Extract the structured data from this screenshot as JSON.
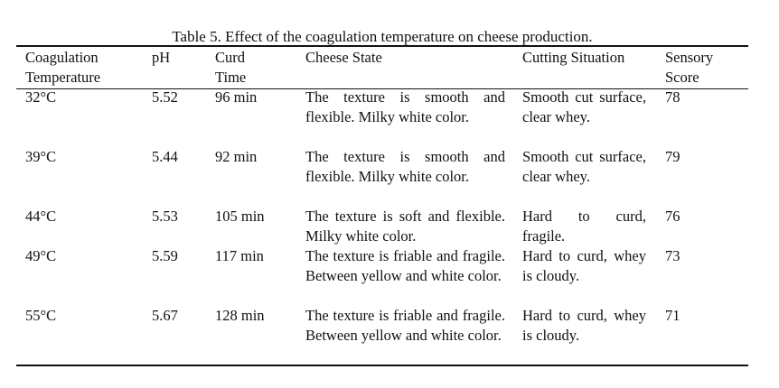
{
  "caption": "Table 5. Effect of the coagulation temperature on cheese production.",
  "headers": {
    "temperature": [
      "Coagulation",
      "Temperature"
    ],
    "ph": "pH",
    "curd_time": [
      "Curd",
      "Time"
    ],
    "cheese_state": "Cheese State",
    "cutting_situation": "Cutting Situation",
    "sensory_score": [
      "Sensory",
      "Score"
    ]
  },
  "rows": [
    {
      "temperature": "32°C",
      "ph": "5.52",
      "curd_time": "96 min",
      "cheese_state": "The texture is smooth and flexible. Milky white color.",
      "cutting_situation": "Smooth cut surface, clear whey.",
      "sensory_score": "78"
    },
    {
      "temperature": "39°C",
      "ph": "5.44",
      "curd_time": "92 min",
      "cheese_state": "The texture is smooth and flexible. Milky white color.",
      "cutting_situation": "Smooth cut surface, clear whey.",
      "sensory_score": "79"
    },
    {
      "temperature": "44°C",
      "ph": "5.53",
      "curd_time": "105 min",
      "cheese_state": "The texture is soft and flexible. Milky white color.",
      "cutting_situation": "Hard to curd, fragile.",
      "sensory_score": "76"
    },
    {
      "temperature": "49°C",
      "ph": "5.59",
      "curd_time": "117 min",
      "cheese_state": "The texture is friable and fragile. Between yellow and white color.",
      "cutting_situation": "Hard to curd, whey is cloudy.",
      "sensory_score": "73"
    },
    {
      "temperature": "55°C",
      "ph": "5.67",
      "curd_time": "128 min",
      "cheese_state": "The texture is friable and fragile. Between yellow and white color.",
      "cutting_situation": "Hard to curd, whey is cloudy.",
      "sensory_score": "71"
    }
  ]
}
